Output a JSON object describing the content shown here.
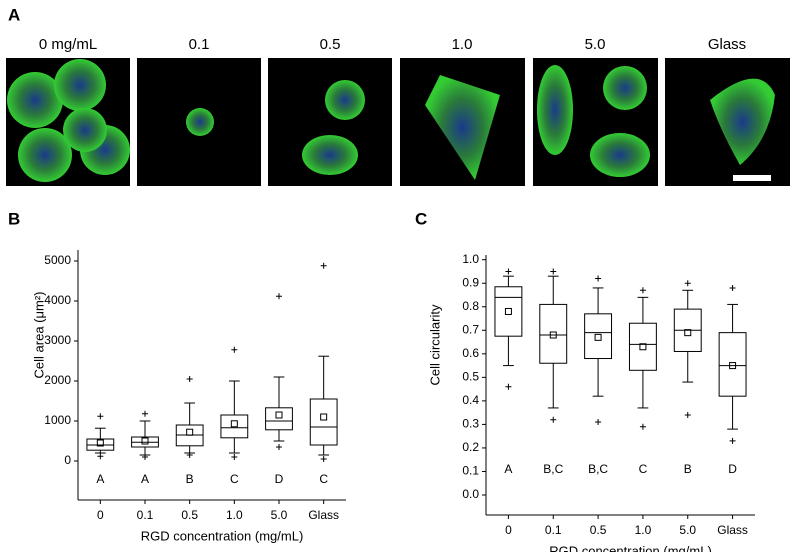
{
  "panel_labels": [
    "A",
    "B",
    "C"
  ],
  "image_labels": [
    "0 mg/mL",
    "0.1",
    "0.5",
    "1.0",
    "5.0",
    "Glass"
  ],
  "chart_data": [
    {
      "type": "box",
      "x_label": "RGD concentration (mg/mL)",
      "y_label": "Cell area (μm²)",
      "categories": [
        "0",
        "0.1",
        "0.5",
        "1.0",
        "5.0",
        "Glass"
      ],
      "group_labels": [
        "A",
        "A",
        "B",
        "C",
        "D",
        "C"
      ],
      "ylim": [
        -975,
        5275
      ],
      "yticks": [
        0,
        1000,
        2000,
        3000,
        4000,
        5000
      ],
      "boxes": [
        {
          "whisker_low": 200,
          "q1": 270,
          "median": 400,
          "q3": 550,
          "whisker_high": 820,
          "mean": 450,
          "outliers": [
            1120,
            120
          ]
        },
        {
          "whisker_low": 150,
          "q1": 350,
          "median": 470,
          "q3": 600,
          "whisker_high": 1000,
          "mean": 500,
          "outliers": [
            1180,
            100
          ]
        },
        {
          "whisker_low": 200,
          "q1": 380,
          "median": 650,
          "q3": 900,
          "whisker_high": 1450,
          "mean": 720,
          "outliers": [
            2050,
            150
          ]
        },
        {
          "whisker_low": 200,
          "q1": 580,
          "median": 830,
          "q3": 1150,
          "whisker_high": 2000,
          "mean": 930,
          "outliers": [
            2780,
            100
          ]
        },
        {
          "whisker_low": 500,
          "q1": 780,
          "median": 1000,
          "q3": 1330,
          "whisker_high": 2100,
          "mean": 1150,
          "outliers": [
            4120,
            350
          ]
        },
        {
          "whisker_low": 150,
          "q1": 400,
          "median": 850,
          "q3": 1550,
          "whisker_high": 2620,
          "mean": 1100,
          "outliers": [
            4880,
            50
          ]
        }
      ]
    },
    {
      "type": "box",
      "x_label": "RGD concentration (mg/mL)",
      "y_label": "Cell circularity",
      "categories": [
        "0",
        "0.1",
        "0.5",
        "1.0",
        "5.0",
        "Glass"
      ],
      "group_labels": [
        "A",
        "B,C",
        "B,C",
        "C",
        "B",
        "D"
      ],
      "ylim": [
        -0.085,
        1.02
      ],
      "yticks": [
        {
          "value": 0,
          "label": "0.0"
        },
        0.1,
        0.2,
        0.3,
        0.4,
        0.5,
        0.6,
        0.7,
        0.8,
        0.9,
        {
          "value": 1,
          "label": "1.0"
        }
      ],
      "boxes": [
        {
          "whisker_low": 0.55,
          "q1": 0.675,
          "median": 0.84,
          "q3": 0.885,
          "whisker_high": 0.93,
          "mean": 0.78,
          "outliers": [
            0.95,
            0.46
          ]
        },
        {
          "whisker_low": 0.37,
          "q1": 0.56,
          "median": 0.68,
          "q3": 0.81,
          "whisker_high": 0.93,
          "mean": 0.68,
          "outliers": [
            0.95,
            0.32
          ]
        },
        {
          "whisker_low": 0.42,
          "q1": 0.58,
          "median": 0.69,
          "q3": 0.77,
          "whisker_high": 0.88,
          "mean": 0.67,
          "outliers": [
            0.92,
            0.31
          ]
        },
        {
          "whisker_low": 0.37,
          "q1": 0.53,
          "median": 0.64,
          "q3": 0.73,
          "whisker_high": 0.84,
          "mean": 0.63,
          "outliers": [
            0.87,
            0.29
          ]
        },
        {
          "whisker_low": 0.48,
          "q1": 0.61,
          "median": 0.7,
          "q3": 0.79,
          "whisker_high": 0.87,
          "mean": 0.69,
          "outliers": [
            0.9,
            0.34
          ]
        },
        {
          "whisker_low": 0.28,
          "q1": 0.42,
          "median": 0.55,
          "q3": 0.69,
          "whisker_high": 0.81,
          "mean": 0.55,
          "outliers": [
            0.88,
            0.23
          ]
        }
      ]
    }
  ]
}
